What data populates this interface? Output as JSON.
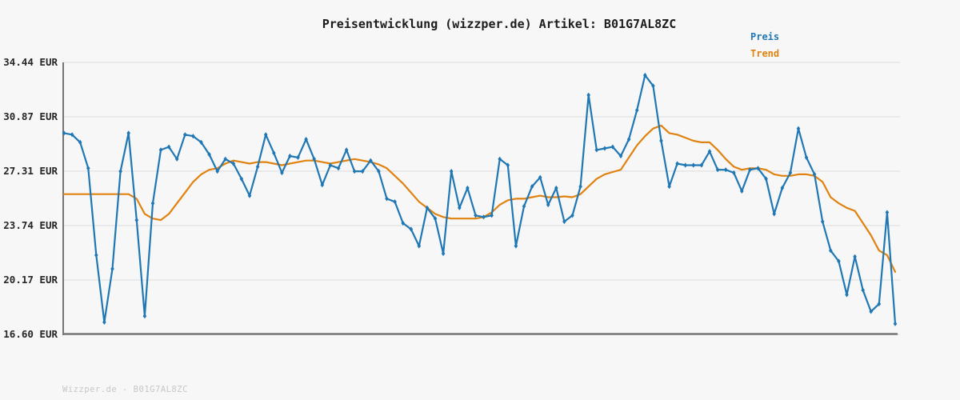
{
  "title": "Preisentwicklung (wizzper.de) Artikel: B01G7AL8ZC",
  "watermark": "Wizzper.de - B01G7AL8ZC",
  "legend": [
    {
      "label": "Preis",
      "color": "#1f77b4"
    },
    {
      "label": "Trend",
      "color": "#df820f"
    }
  ],
  "y_axis": {
    "unit": "EUR",
    "ticks": [
      {
        "label": "34.44 EUR",
        "value": 34.44
      },
      {
        "label": "30.87 EUR",
        "value": 30.87
      },
      {
        "label": "27.31 EUR",
        "value": 27.31
      },
      {
        "label": "23.74 EUR",
        "value": 23.74
      },
      {
        "label": "20.17 EUR",
        "value": 20.17
      },
      {
        "label": "16.60 EUR",
        "value": 16.6
      }
    ]
  },
  "x_axis": {
    "tick_labels": []
  },
  "colors": {
    "background": "#f7f7f7",
    "grid": "#e2e2e2",
    "spine": "#757575",
    "price": "#1f77b4",
    "trend": "#df820f",
    "title_text": "#1c1c1c",
    "tick_text": "#262626",
    "watermark_text": "#c7c7c7"
  },
  "chart_data": {
    "type": "line",
    "title": "Preisentwicklung (wizzper.de) Artikel: B01G7AL8ZC",
    "ylabel": "EUR",
    "ylim": [
      16.6,
      34.44
    ],
    "grid": true,
    "legend_position": "top-right",
    "x": "time (no axis labels shown), 104 equally spaced observations",
    "series": [
      {
        "name": "Preis",
        "color": "#1f77b4",
        "marker": "diamond",
        "values": [
          29.8,
          29.7,
          29.2,
          27.5,
          21.8,
          17.4,
          20.9,
          27.3,
          29.8,
          24.1,
          17.8,
          25.2,
          28.7,
          28.9,
          28.1,
          29.7,
          29.6,
          29.2,
          28.4,
          27.3,
          28.1,
          27.8,
          26.8,
          25.7,
          27.6,
          29.7,
          28.5,
          27.2,
          28.3,
          28.2,
          29.4,
          28.1,
          26.4,
          27.7,
          27.5,
          28.7,
          27.3,
          27.3,
          28.0,
          27.3,
          25.5,
          25.3,
          23.9,
          23.5,
          22.4,
          24.9,
          24.2,
          21.9,
          27.3,
          24.9,
          26.2,
          24.4,
          24.3,
          24.4,
          28.1,
          27.7,
          22.4,
          25.0,
          26.3,
          26.9,
          25.1,
          26.2,
          24.0,
          24.4,
          26.3,
          32.3,
          28.7,
          28.8,
          28.9,
          28.3,
          29.4,
          31.3,
          33.6,
          32.9,
          29.3,
          26.3,
          27.8,
          27.7,
          27.7,
          27.7,
          28.6,
          27.4,
          27.4,
          27.2,
          26.0,
          27.4,
          27.5,
          26.8,
          24.5,
          26.2,
          27.2,
          30.1,
          28.2,
          27.1,
          24.0,
          22.1,
          21.4,
          19.2,
          21.7,
          19.5,
          18.1,
          18.6,
          24.6,
          17.3
        ]
      },
      {
        "name": "Trend",
        "color": "#df820f",
        "marker": "none",
        "values": [
          25.8,
          25.8,
          25.8,
          25.8,
          25.8,
          25.8,
          25.8,
          25.8,
          25.8,
          25.5,
          24.5,
          24.2,
          24.1,
          24.5,
          25.2,
          25.9,
          26.6,
          27.1,
          27.4,
          27.5,
          27.8,
          28.0,
          27.9,
          27.8,
          27.9,
          27.9,
          27.8,
          27.7,
          27.8,
          27.9,
          28.0,
          28.0,
          27.9,
          27.8,
          27.9,
          28.0,
          28.1,
          28.0,
          27.9,
          27.75,
          27.5,
          27.0,
          26.5,
          25.9,
          25.3,
          24.9,
          24.5,
          24.3,
          24.2,
          24.2,
          24.2,
          24.2,
          24.3,
          24.6,
          25.1,
          25.4,
          25.5,
          25.5,
          25.6,
          25.7,
          25.6,
          25.6,
          25.65,
          25.6,
          25.8,
          26.3,
          26.8,
          27.1,
          27.25,
          27.4,
          28.2,
          29.0,
          29.6,
          30.1,
          30.3,
          29.8,
          29.7,
          29.5,
          29.3,
          29.2,
          29.2,
          28.7,
          28.1,
          27.6,
          27.4,
          27.5,
          27.5,
          27.4,
          27.1,
          27.0,
          27.0,
          27.1,
          27.1,
          27.0,
          26.6,
          25.6,
          25.2,
          24.9,
          24.7,
          23.9,
          23.1,
          22.1,
          21.8,
          20.7
        ]
      }
    ]
  }
}
